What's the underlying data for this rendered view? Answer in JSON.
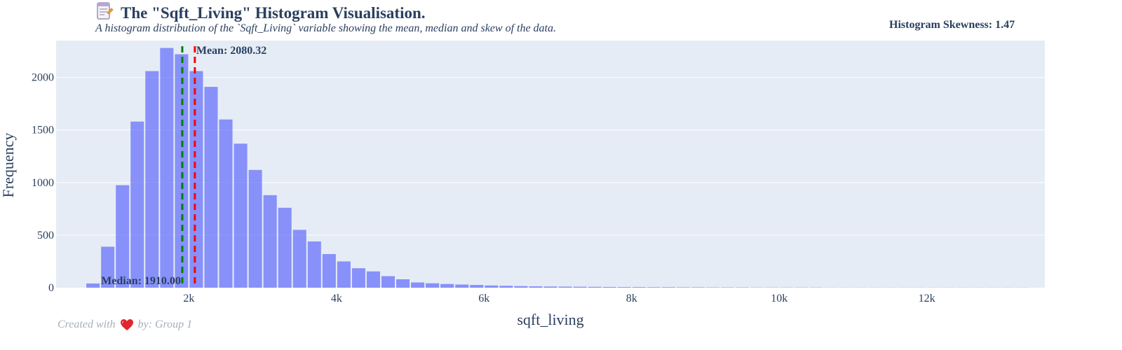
{
  "header": {
    "icon": "memo-icon",
    "title": "The \"Sqft_Living\" Histogram Visualisation.",
    "subtitle": "A histogram distribution of the `Sqft_Living` variable showing the mean, median and skew of the data.",
    "skewness": "Histogram Skewness: 1.47"
  },
  "footer": {
    "prefix": "Created with",
    "icon": "heart-icon",
    "suffix": "by: Group 1"
  },
  "colors": {
    "plot_bg": "#e5ecf6",
    "bar": "#636efa",
    "mean_line": "#ff0000",
    "median_line": "#008000",
    "text": "#2a3f5f",
    "footer_text": "#a7afbc",
    "heart": "#e0262f"
  },
  "chart_data": {
    "type": "bar",
    "xlabel": "sqft_living",
    "ylabel": "Frequency",
    "xlim": [
      200,
      13600
    ],
    "ylim": [
      0,
      2350
    ],
    "x_ticks": [
      2000,
      4000,
      6000,
      8000,
      10000,
      12000
    ],
    "x_tick_labels": [
      "2k",
      "4k",
      "6k",
      "8k",
      "10k",
      "12k"
    ],
    "y_ticks": [
      0,
      500,
      1000,
      1500,
      2000
    ],
    "y_tick_labels": [
      "0",
      "500",
      "1000",
      "1500",
      "2000"
    ],
    "bin_width": 200,
    "bin_start": 600,
    "values": [
      40,
      390,
      975,
      1580,
      2060,
      2280,
      2220,
      2060,
      1910,
      1600,
      1370,
      1120,
      880,
      760,
      550,
      440,
      320,
      250,
      185,
      155,
      110,
      80,
      50,
      42,
      35,
      30,
      26,
      21,
      18,
      15,
      13,
      11,
      10,
      9,
      8,
      7,
      6,
      6,
      5,
      5,
      4,
      4,
      3,
      3,
      3,
      2,
      2,
      2,
      2,
      2,
      1,
      1,
      1,
      1,
      1,
      1,
      1,
      1,
      1,
      1,
      1,
      1,
      1,
      1
    ],
    "mean": 2080.32,
    "median": 1910.0,
    "mean_label": "Mean: 2080.32",
    "median_label": "Median: 1910.00",
    "grid": true,
    "legend": "none"
  }
}
